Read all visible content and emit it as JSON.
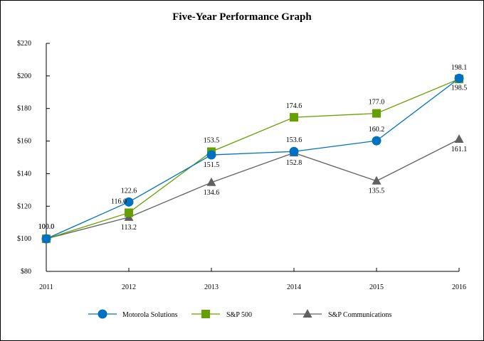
{
  "chart_data": {
    "type": "line",
    "title": "Five-Year Performance Graph",
    "xlabel": "",
    "ylabel": "",
    "categories": [
      "2011",
      "2012",
      "2013",
      "2014",
      "2015",
      "2016"
    ],
    "ylim": [
      80,
      220
    ],
    "yticks": [
      80,
      100,
      120,
      140,
      160,
      180,
      200,
      220
    ],
    "ytick_labels": [
      "$80",
      "$100",
      "$120",
      "$140",
      "$160",
      "$180",
      "$200",
      "$220"
    ],
    "grid": false,
    "legend": "bottom",
    "series": [
      {
        "name": "Motorola Solutions",
        "marker": "circle",
        "color": "#0070C0",
        "values": [
          100.0,
          122.6,
          151.5,
          153.6,
          160.2,
          198.5
        ],
        "labels": [
          "100.0",
          "122.6",
          "151.5",
          "153.6",
          "160.2",
          "198.5"
        ]
      },
      {
        "name": "S&P 500",
        "marker": "square",
        "color": "#66A000",
        "values": [
          100.0,
          116.0,
          153.5,
          174.6,
          177.0,
          198.1
        ],
        "labels": [
          "100.0",
          "116.0",
          "153.5",
          "174.6",
          "177.0",
          "198.1"
        ]
      },
      {
        "name": "S&P Communications",
        "marker": "triangle",
        "color": "#606060",
        "values": [
          100.0,
          113.2,
          134.6,
          152.8,
          135.5,
          161.1
        ],
        "labels": [
          "",
          "113.2",
          "134.6",
          "152.8",
          "135.5",
          "161.1"
        ]
      }
    ]
  }
}
